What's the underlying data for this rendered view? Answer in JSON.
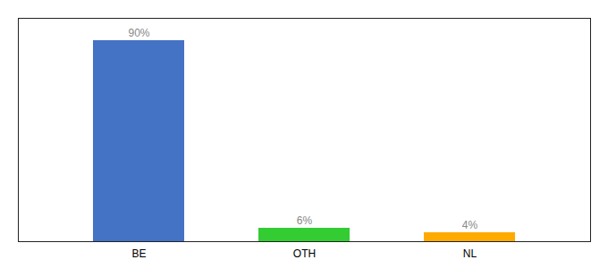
{
  "chart_data": {
    "type": "bar",
    "categories": [
      "BE",
      "OTH",
      "NL"
    ],
    "values": [
      90,
      6,
      4
    ],
    "value_labels": [
      "90%",
      "6%",
      "4%"
    ],
    "colors": [
      "#4472c4",
      "#33cc33",
      "#ffaa00"
    ],
    "ylim": [
      0,
      100
    ],
    "data_labels": true,
    "tick_labels": "x"
  }
}
